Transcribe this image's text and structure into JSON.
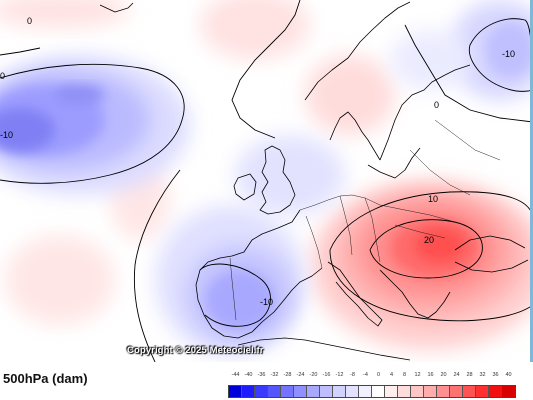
{
  "map": {
    "credit": "Copyright © 2025 Meteociel.fr",
    "contour_labels": [
      "0",
      "0",
      "-10",
      "0",
      "-10",
      "-10",
      "10",
      "20"
    ],
    "anomaly_areas": [
      {
        "kind": "negative",
        "region": "Atlantic south of Greenland"
      },
      {
        "kind": "negative",
        "region": "Iberian Peninsula"
      },
      {
        "kind": "negative",
        "region": "British Isles / North Sea"
      },
      {
        "kind": "negative",
        "region": "Northern Russia"
      },
      {
        "kind": "positive",
        "region": "Balkans / Eastern Europe"
      },
      {
        "kind": "positive",
        "region": "Norway"
      }
    ]
  },
  "footer": {
    "variable_label": "500hPa (dam)"
  },
  "legend": {
    "ticks": [
      "-44",
      "-40",
      "-36",
      "-32",
      "-28",
      "-24",
      "-20",
      "-16",
      "-12",
      "-8",
      "-4",
      "0",
      "4",
      "8",
      "12",
      "16",
      "20",
      "24",
      "28",
      "32",
      "36",
      "40"
    ],
    "colors": [
      "#0000d8",
      "#1c1cff",
      "#3a3aff",
      "#5656ff",
      "#7474ff",
      "#8f8fff",
      "#a8a8ff",
      "#bebeff",
      "#d2d2ff",
      "#e2e2ff",
      "#f0f0ff",
      "#ffffff",
      "#ffeeee",
      "#ffdcdc",
      "#ffc6c6",
      "#ffacac",
      "#ff9090",
      "#ff7272",
      "#ff5252",
      "#ff3030",
      "#f01010",
      "#d80000"
    ]
  },
  "colors": {
    "positive_anomaly": "#ff5a5a",
    "negative_anomaly": "#6f6ff0",
    "contour_line": "#000000",
    "coastline": "#000000"
  }
}
